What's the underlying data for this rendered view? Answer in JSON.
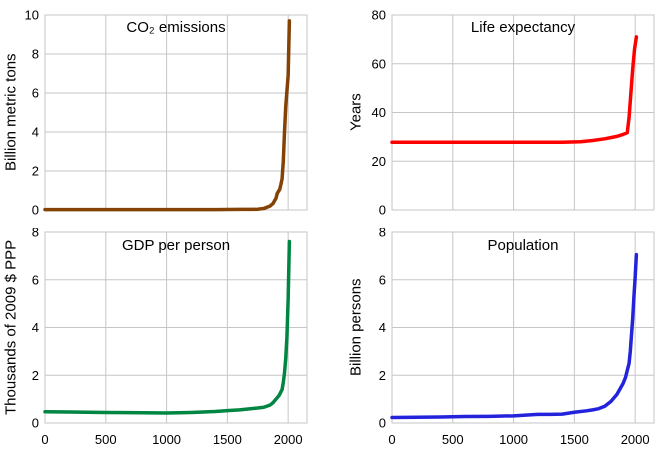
{
  "figure": {
    "background": "#ffffff",
    "grid_color": "#c6c6c6",
    "text_color": "#000000"
  },
  "chart_data": [
    {
      "type": "line",
      "title": "CO₂ emissions",
      "ylabel": "Billion metric tons",
      "color": "#844205",
      "xlim": [
        0,
        2155
      ],
      "ylim": [
        0,
        10
      ],
      "xticks": [
        0,
        500,
        1000,
        1500,
        2000
      ],
      "yticks": [
        0,
        2,
        4,
        6,
        8,
        10
      ],
      "show_x_labels": false,
      "grid": true,
      "legend": "none",
      "x": [
        0,
        200,
        400,
        600,
        800,
        1000,
        1200,
        1400,
        1600,
        1700,
        1750,
        1800,
        1850,
        1875,
        1900,
        1910,
        1920,
        1930,
        1940,
        1950,
        1960,
        1970,
        1980,
        1990,
        2000,
        2010
      ],
      "values": [
        0.02,
        0.02,
        0.02,
        0.02,
        0.02,
        0.02,
        0.02,
        0.02,
        0.03,
        0.03,
        0.04,
        0.08,
        0.2,
        0.33,
        0.6,
        0.85,
        0.95,
        1.05,
        1.3,
        1.6,
        2.5,
        4.0,
        5.3,
        6.1,
        6.9,
        9.7
      ]
    },
    {
      "type": "line",
      "title": "Life expectancy",
      "ylabel": "Years",
      "color": "#ff0000",
      "xlim": [
        0,
        2155
      ],
      "ylim": [
        0,
        80
      ],
      "xticks": [
        0,
        500,
        1000,
        1500,
        2000
      ],
      "yticks": [
        0,
        20,
        40,
        60,
        80
      ],
      "show_x_labels": false,
      "grid": true,
      "legend": "none",
      "x": [
        0,
        500,
        1000,
        1400,
        1550,
        1650,
        1750,
        1850,
        1900,
        1935,
        1950,
        1965,
        1980,
        1995,
        2010
      ],
      "values": [
        27.8,
        27.8,
        27.8,
        27.8,
        28.0,
        28.5,
        29.2,
        30.2,
        31.0,
        31.7,
        38,
        48,
        58,
        66,
        71
      ]
    },
    {
      "type": "line",
      "title": "GDP per person",
      "ylabel": "Thousands of 2009 $ PPP",
      "color": "#008542",
      "xlim": [
        0,
        2155
      ],
      "ylim": [
        0,
        8
      ],
      "xticks": [
        0,
        500,
        1000,
        1500,
        2000
      ],
      "yticks": [
        0,
        2,
        4,
        6,
        8
      ],
      "show_x_labels": true,
      "grid": true,
      "legend": "none",
      "x": [
        0,
        200,
        500,
        800,
        1000,
        1200,
        1400,
        1500,
        1600,
        1700,
        1750,
        1800,
        1850,
        1875,
        1900,
        1925,
        1950,
        1960,
        1970,
        1980,
        1990,
        2000,
        2010
      ],
      "values": [
        0.47,
        0.46,
        0.44,
        0.43,
        0.42,
        0.44,
        0.48,
        0.52,
        0.55,
        0.6,
        0.63,
        0.66,
        0.75,
        0.85,
        1.0,
        1.15,
        1.4,
        1.7,
        2.1,
        2.7,
        3.6,
        5.2,
        7.6
      ]
    },
    {
      "type": "line",
      "title": "Population",
      "ylabel": "Billion persons",
      "color": "#2323dc",
      "xlim": [
        0,
        2155
      ],
      "ylim": [
        0,
        8
      ],
      "xticks": [
        0,
        500,
        1000,
        1500,
        2000
      ],
      "yticks": [
        0,
        2,
        4,
        6,
        8
      ],
      "show_x_labels": true,
      "grid": true,
      "legend": "none",
      "x": [
        0,
        200,
        400,
        600,
        800,
        1000,
        1100,
        1200,
        1300,
        1400,
        1500,
        1600,
        1650,
        1700,
        1750,
        1800,
        1850,
        1900,
        1920,
        1940,
        1950,
        1960,
        1970,
        1980,
        1990,
        2000,
        2010
      ],
      "values": [
        0.23,
        0.24,
        0.25,
        0.27,
        0.28,
        0.3,
        0.33,
        0.36,
        0.36,
        0.37,
        0.45,
        0.51,
        0.55,
        0.6,
        0.7,
        0.9,
        1.2,
        1.65,
        1.9,
        2.3,
        2.5,
        3.0,
        3.7,
        4.4,
        5.3,
        6.1,
        7.05
      ]
    }
  ]
}
